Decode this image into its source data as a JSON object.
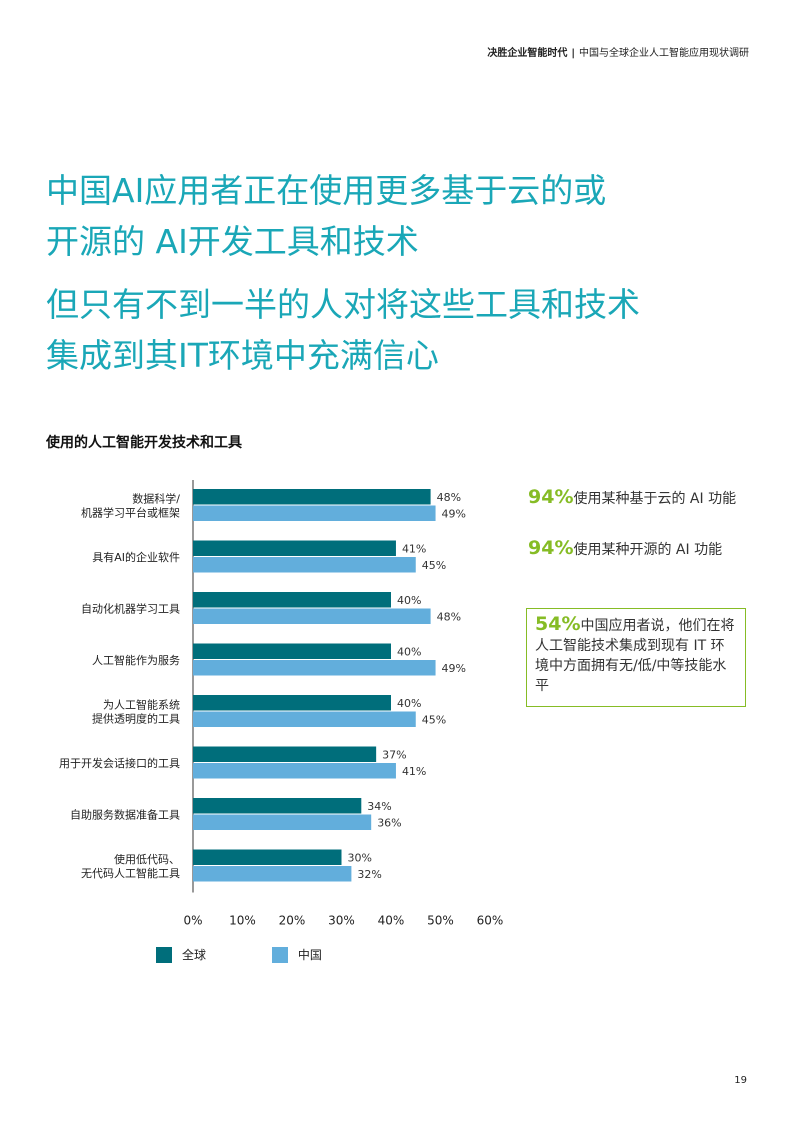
{
  "running_header": {
    "title": "决胜企业智能时代",
    "separator": "|",
    "subtitle": "中国与全球企业人工智能应用现状调研"
  },
  "headline_1": {
    "line1": "中国AI应用者正在使用更多基于云的或",
    "line2": "开源的 AI开发工具和技术"
  },
  "headline_2": {
    "line1": "但只有不到一半的人对将这些工具和技术",
    "line2": "集成到其IT环境中充满信心"
  },
  "stats": [
    {
      "percent": "94%",
      "text": "使用某种基于云的 AI 功能"
    },
    {
      "percent": "94%",
      "text": "使用某种开源的 AI 功能"
    }
  ],
  "callout": {
    "percent": "54%",
    "text": "中国应用者说，他们在将人工智能技术集成到现有 IT 环境中方面拥有无/低/中等技能水平"
  },
  "colors": {
    "global": "#006e7b",
    "china": "#62aedc",
    "accent": "#86bc25",
    "headline": "#1aa7b7"
  },
  "chart_data": {
    "type": "bar",
    "orientation": "horizontal",
    "title": "使用的人工智能开发技术和工具",
    "categories": [
      [
        "数据科学/",
        "机器学习平台或框架"
      ],
      [
        "具有AI的企业软件"
      ],
      [
        "自动化机器学习工具"
      ],
      [
        "人工智能作为服务"
      ],
      [
        "为人工智能系统",
        "提供透明度的工具"
      ],
      [
        "用于开发会话接口的工具"
      ],
      [
        "自助服务数据准备工具"
      ],
      [
        "使用低代码、",
        "无代码人工智能工具"
      ]
    ],
    "series": [
      {
        "name": "全球",
        "values": [
          48,
          41,
          40,
          40,
          40,
          37,
          34,
          30
        ]
      },
      {
        "name": "中国",
        "values": [
          49,
          45,
          48,
          49,
          45,
          41,
          36,
          32
        ]
      }
    ],
    "value_suffix": "%",
    "xlim": [
      0,
      60
    ],
    "xticks": [
      0,
      10,
      20,
      30,
      40,
      50,
      60
    ],
    "tick_labels": [
      "0%",
      "10%",
      "20%",
      "30%",
      "40%",
      "50%",
      "60%"
    ],
    "legend_position": "bottom-left",
    "grid": false
  },
  "page_number": "19"
}
